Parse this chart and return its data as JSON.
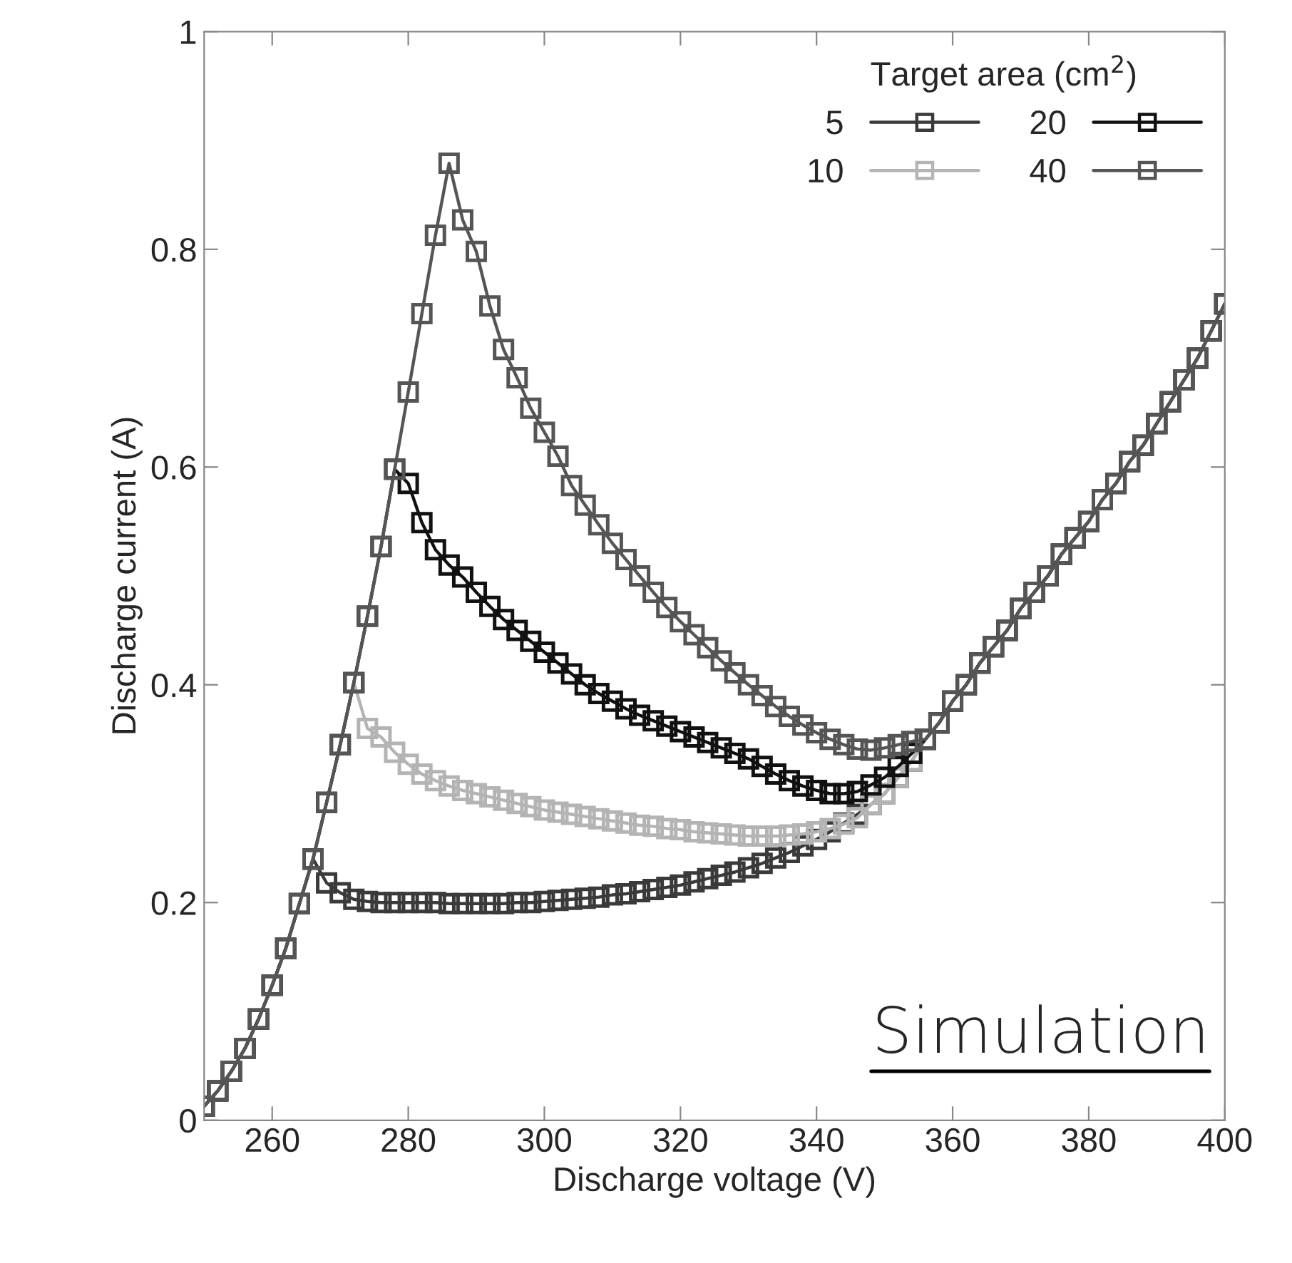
{
  "chart_data": {
    "type": "line",
    "xlabel": "Discharge voltage (V)",
    "ylabel": "Discharge current (A)",
    "legend_title": "Target area (cm$^{2}$)",
    "x": [
      250,
      252,
      254,
      256,
      258,
      260,
      262,
      264,
      266,
      268,
      270,
      272,
      274,
      276,
      278,
      280,
      282,
      284,
      286,
      288,
      290,
      292,
      294,
      296,
      298,
      300,
      302,
      304,
      306,
      308,
      310,
      312,
      314,
      316,
      318,
      320,
      322,
      324,
      326,
      328,
      330,
      332,
      334,
      336,
      338,
      340,
      342,
      344,
      346,
      348,
      350,
      352,
      354,
      356,
      358,
      360,
      362,
      364,
      366,
      368,
      370,
      372,
      374,
      376,
      378,
      380,
      382,
      384,
      386,
      388,
      390,
      392,
      394,
      396,
      398,
      400
    ],
    "series": [
      {
        "name": "5",
        "color": "#3a3a3a",
        "values": [
          0.013,
          0.027,
          0.045,
          0.066,
          0.093,
          0.124,
          0.158,
          0.199,
          0.24,
          0.218,
          0.209,
          0.203,
          0.201,
          0.2,
          0.2,
          0.2,
          0.2,
          0.2,
          0.199,
          0.199,
          0.199,
          0.199,
          0.199,
          0.2,
          0.2,
          0.201,
          0.202,
          0.203,
          0.204,
          0.205,
          0.207,
          0.208,
          0.21,
          0.212,
          0.214,
          0.216,
          0.219,
          0.222,
          0.225,
          0.228,
          0.232,
          0.236,
          0.241,
          0.246,
          0.252,
          0.258,
          0.265,
          0.273,
          0.281,
          0.29,
          0.3,
          0.315,
          0.33,
          0.35,
          0.365,
          0.385,
          0.4,
          0.42,
          0.435,
          0.45,
          0.47,
          0.485,
          0.5,
          0.52,
          0.535,
          0.55,
          0.57,
          0.585,
          0.605,
          0.62,
          0.64,
          0.66,
          0.68,
          0.7,
          0.725,
          0.75
        ]
      },
      {
        "name": "10",
        "color": "#b4b4b4",
        "values": [
          0.013,
          0.027,
          0.045,
          0.066,
          0.093,
          0.124,
          0.158,
          0.199,
          0.24,
          0.292,
          0.345,
          0.402,
          0.36,
          0.352,
          0.338,
          0.327,
          0.318,
          0.312,
          0.307,
          0.303,
          0.3,
          0.297,
          0.294,
          0.291,
          0.288,
          0.285,
          0.283,
          0.281,
          0.279,
          0.277,
          0.275,
          0.273,
          0.271,
          0.27,
          0.268,
          0.267,
          0.265,
          0.264,
          0.263,
          0.262,
          0.261,
          0.261,
          0.261,
          0.262,
          0.263,
          0.265,
          0.268,
          0.272,
          0.278,
          0.29,
          0.3,
          0.315,
          0.33,
          0.35,
          0.365,
          0.385,
          0.4,
          0.42,
          0.435,
          0.45,
          0.47,
          0.485,
          0.5,
          0.52,
          0.535,
          0.55,
          0.57,
          0.585,
          0.605,
          0.62,
          0.64,
          0.66,
          0.68,
          0.7,
          0.725,
          0.75
        ]
      },
      {
        "name": "20",
        "color": "#111111",
        "values": [
          0.013,
          0.027,
          0.045,
          0.066,
          0.093,
          0.124,
          0.158,
          0.199,
          0.24,
          0.292,
          0.345,
          0.402,
          0.463,
          0.527,
          0.598,
          0.585,
          0.549,
          0.524,
          0.51,
          0.499,
          0.485,
          0.472,
          0.46,
          0.45,
          0.44,
          0.43,
          0.42,
          0.41,
          0.4,
          0.392,
          0.385,
          0.378,
          0.372,
          0.367,
          0.362,
          0.357,
          0.352,
          0.347,
          0.342,
          0.337,
          0.332,
          0.325,
          0.318,
          0.312,
          0.307,
          0.303,
          0.3,
          0.3,
          0.302,
          0.308,
          0.315,
          0.325,
          0.337,
          0.35,
          0.365,
          0.385,
          0.4,
          0.42,
          0.435,
          0.45,
          0.47,
          0.485,
          0.5,
          0.52,
          0.535,
          0.55,
          0.57,
          0.585,
          0.605,
          0.62,
          0.64,
          0.66,
          0.68,
          0.7,
          0.725,
          0.75
        ]
      },
      {
        "name": "40",
        "color": "#555555",
        "values": [
          0.013,
          0.027,
          0.045,
          0.066,
          0.093,
          0.124,
          0.158,
          0.199,
          0.24,
          0.292,
          0.345,
          0.402,
          0.463,
          0.527,
          0.598,
          0.669,
          0.741,
          0.813,
          0.879,
          0.827,
          0.798,
          0.748,
          0.708,
          0.682,
          0.654,
          0.632,
          0.61,
          0.583,
          0.565,
          0.547,
          0.53,
          0.515,
          0.5,
          0.485,
          0.471,
          0.458,
          0.446,
          0.434,
          0.422,
          0.411,
          0.4,
          0.39,
          0.38,
          0.371,
          0.363,
          0.356,
          0.35,
          0.345,
          0.341,
          0.34,
          0.342,
          0.345,
          0.348,
          0.35,
          0.365,
          0.385,
          0.4,
          0.42,
          0.435,
          0.45,
          0.47,
          0.485,
          0.5,
          0.52,
          0.535,
          0.55,
          0.57,
          0.585,
          0.605,
          0.62,
          0.64,
          0.66,
          0.68,
          0.7,
          0.725,
          0.75
        ]
      }
    ],
    "xlim": [
      250,
      400
    ],
    "xticks": [
      260,
      280,
      300,
      320,
      340,
      360,
      380,
      400
    ],
    "ylim": [
      0,
      1
    ],
    "yticks": [
      0,
      0.2,
      0.4,
      0.6,
      0.8,
      1
    ],
    "annotations": [
      "Simulation"
    ],
    "grid": false,
    "legend": "top right",
    "marker": "square",
    "line_style": "solid"
  }
}
